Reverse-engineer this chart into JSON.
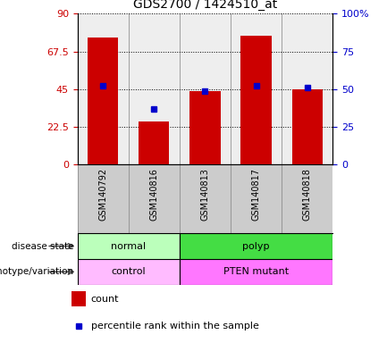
{
  "title": "GDS2700 / 1424510_at",
  "samples": [
    "GSM140792",
    "GSM140816",
    "GSM140813",
    "GSM140817",
    "GSM140818"
  ],
  "counts": [
    76,
    26,
    44,
    77,
    45
  ],
  "percentiles": [
    52,
    37,
    49,
    52,
    51
  ],
  "left_ylim": [
    0,
    90
  ],
  "right_ylim": [
    0,
    100
  ],
  "left_yticks": [
    0,
    22.5,
    45,
    67.5,
    90
  ],
  "right_yticks": [
    0,
    25,
    50,
    75,
    100
  ],
  "left_yticklabels": [
    "0",
    "22.5",
    "45",
    "67.5",
    "90"
  ],
  "right_yticklabels": [
    "0",
    "25",
    "50",
    "75",
    "100%"
  ],
  "bar_color": "#cc0000",
  "dot_color": "#0000cc",
  "disease_state": [
    {
      "label": "normal",
      "span": [
        0,
        2
      ],
      "color": "#bbffbb"
    },
    {
      "label": "polyp",
      "span": [
        2,
        5
      ],
      "color": "#44dd44"
    }
  ],
  "genotype": [
    {
      "label": "control",
      "span": [
        0,
        2
      ],
      "color": "#ffbbff"
    },
    {
      "label": "PTEN mutant",
      "span": [
        2,
        5
      ],
      "color": "#ff77ff"
    }
  ],
  "legend_count_label": "count",
  "legend_pct_label": "percentile rank within the sample",
  "disease_label": "disease state",
  "genotype_label": "genotype/variation",
  "bg_color": "#ffffff",
  "xtick_bg": "#cccccc",
  "chart_bg": "#eeeeee"
}
